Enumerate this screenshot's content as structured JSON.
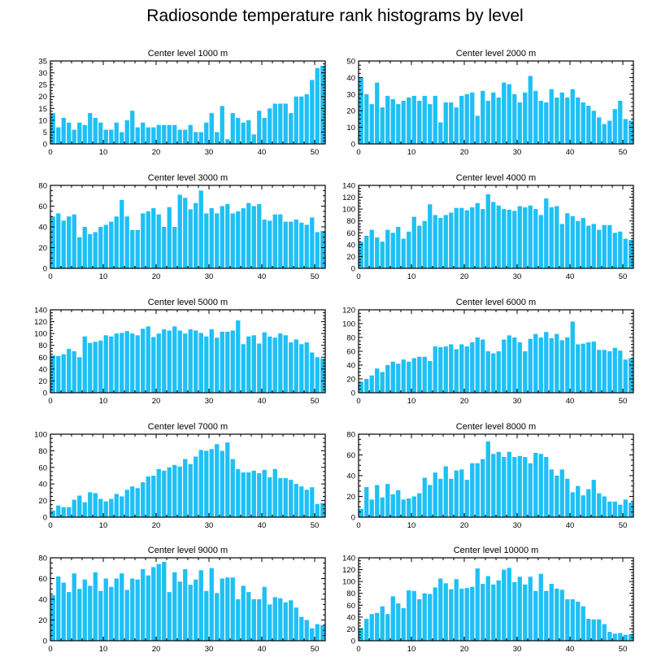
{
  "title": "Radiosonde temperature rank histograms by level",
  "colors": {
    "bar": "#1ec0f5",
    "axis": "#000000",
    "background": "#ffffff"
  },
  "chart_data": [
    {
      "type": "bar",
      "title": "Center level 1000 m",
      "xlim": [
        0,
        52
      ],
      "xticks": [
        0,
        10,
        20,
        30,
        40,
        50
      ],
      "ylim": [
        0,
        35
      ],
      "yticks": [
        0,
        5,
        10,
        15,
        20,
        25,
        30,
        35
      ],
      "values": [
        13,
        7,
        11,
        9,
        6,
        9,
        8,
        13,
        11,
        9,
        6,
        6,
        9,
        5,
        10,
        14,
        7,
        9,
        7,
        7,
        8,
        8,
        8,
        8,
        6,
        6,
        8,
        5,
        5,
        9,
        13,
        5,
        16,
        2,
        13,
        11,
        9,
        10,
        4,
        14,
        11,
        15,
        17,
        17,
        17,
        13,
        20,
        20,
        21,
        27,
        32,
        33
      ]
    },
    {
      "type": "bar",
      "title": "Center level 2000 m",
      "xlim": [
        0,
        52
      ],
      "xticks": [
        0,
        10,
        20,
        30,
        40,
        50
      ],
      "ylim": [
        0,
        50
      ],
      "yticks": [
        0,
        10,
        20,
        30,
        40,
        50
      ],
      "values": [
        40,
        30,
        24,
        37,
        22,
        29,
        27,
        24,
        26,
        28,
        29,
        26,
        29,
        24,
        29,
        13,
        25,
        25,
        22,
        29,
        30,
        31,
        17,
        32,
        26,
        31,
        28,
        37,
        36,
        30,
        25,
        31,
        41,
        32,
        26,
        25,
        33,
        28,
        31,
        28,
        33,
        28,
        25,
        23,
        20,
        16,
        12,
        14,
        21,
        26,
        15,
        14
      ]
    },
    {
      "type": "bar",
      "title": "Center level 3000 m",
      "xlim": [
        0,
        52
      ],
      "xticks": [
        0,
        10,
        20,
        30,
        40,
        50
      ],
      "ylim": [
        0,
        80
      ],
      "yticks": [
        0,
        20,
        40,
        60,
        80
      ],
      "values": [
        50,
        53,
        46,
        50,
        52,
        30,
        40,
        33,
        35,
        40,
        42,
        45,
        50,
        66,
        50,
        37,
        37,
        53,
        55,
        58,
        52,
        40,
        59,
        40,
        71,
        68,
        57,
        63,
        75,
        53,
        58,
        53,
        60,
        62,
        53,
        55,
        58,
        63,
        60,
        62,
        47,
        46,
        52,
        52,
        45,
        45,
        47,
        44,
        42,
        49,
        35,
        36
      ]
    },
    {
      "type": "bar",
      "title": "Center level 4000 m",
      "xlim": [
        0,
        52
      ],
      "xticks": [
        0,
        10,
        20,
        30,
        40,
        50
      ],
      "ylim": [
        0,
        140
      ],
      "yticks": [
        0,
        20,
        40,
        60,
        80,
        100,
        120,
        140
      ],
      "values": [
        45,
        55,
        65,
        52,
        45,
        65,
        60,
        70,
        50,
        62,
        87,
        72,
        80,
        108,
        90,
        85,
        90,
        94,
        102,
        102,
        98,
        103,
        110,
        100,
        125,
        112,
        106,
        100,
        99,
        97,
        105,
        103,
        106,
        100,
        90,
        118,
        103,
        105,
        75,
        93,
        88,
        80,
        85,
        72,
        75,
        65,
        73,
        73,
        60,
        62,
        50,
        48
      ]
    },
    {
      "type": "bar",
      "title": "Center level 5000 m",
      "xlim": [
        0,
        52
      ],
      "xticks": [
        0,
        10,
        20,
        30,
        40,
        50
      ],
      "ylim": [
        0,
        140
      ],
      "yticks": [
        0,
        20,
        40,
        60,
        80,
        100,
        120,
        140
      ],
      "values": [
        63,
        62,
        65,
        74,
        70,
        60,
        95,
        84,
        86,
        88,
        97,
        95,
        100,
        101,
        104,
        100,
        97,
        108,
        112,
        94,
        100,
        107,
        105,
        112,
        105,
        100,
        107,
        105,
        101,
        95,
        107,
        93,
        103,
        103,
        105,
        122,
        82,
        95,
        97,
        83,
        102,
        95,
        93,
        100,
        97,
        85,
        90,
        82,
        85,
        68,
        60,
        58
      ]
    },
    {
      "type": "bar",
      "title": "Center level 6000 m",
      "xlim": [
        0,
        52
      ],
      "xticks": [
        0,
        10,
        20,
        30,
        40,
        50
      ],
      "ylim": [
        0,
        120
      ],
      "yticks": [
        0,
        20,
        40,
        60,
        80,
        100,
        120
      ],
      "values": [
        16,
        20,
        25,
        35,
        30,
        40,
        45,
        42,
        48,
        45,
        50,
        52,
        52,
        46,
        67,
        66,
        67,
        70,
        63,
        70,
        67,
        73,
        80,
        77,
        60,
        57,
        60,
        77,
        83,
        80,
        73,
        60,
        78,
        85,
        80,
        88,
        79,
        85,
        76,
        80,
        103,
        70,
        71,
        73,
        74,
        62,
        62,
        60,
        65,
        61,
        48,
        50
      ]
    },
    {
      "type": "bar",
      "title": "Center level 7000 m",
      "xlim": [
        0,
        52
      ],
      "xticks": [
        0,
        10,
        20,
        30,
        40,
        50
      ],
      "ylim": [
        0,
        100
      ],
      "yticks": [
        0,
        20,
        40,
        60,
        80,
        100
      ],
      "values": [
        8,
        14,
        12,
        12,
        21,
        26,
        18,
        30,
        29,
        22,
        19,
        22,
        28,
        25,
        33,
        37,
        35,
        42,
        49,
        50,
        58,
        56,
        60,
        63,
        61,
        70,
        64,
        73,
        81,
        80,
        82,
        88,
        80,
        90,
        70,
        58,
        54,
        54,
        56,
        53,
        57,
        48,
        58,
        47,
        47,
        45,
        40,
        37,
        33,
        36,
        16,
        17
      ]
    },
    {
      "type": "bar",
      "title": "Center level 8000 m",
      "xlim": [
        0,
        52
      ],
      "xticks": [
        0,
        10,
        20,
        30,
        40,
        50
      ],
      "ylim": [
        0,
        80
      ],
      "yticks": [
        0,
        20,
        40,
        60,
        80
      ],
      "values": [
        8,
        29,
        17,
        31,
        19,
        32,
        22,
        26,
        17,
        18,
        20,
        23,
        38,
        31,
        43,
        37,
        49,
        37,
        45,
        46,
        36,
        52,
        52,
        56,
        73,
        61,
        63,
        58,
        63,
        58,
        59,
        58,
        52,
        62,
        61,
        58,
        46,
        40,
        46,
        37,
        24,
        30,
        21,
        27,
        36,
        23,
        20,
        15,
        15,
        12,
        17,
        14
      ]
    },
    {
      "type": "bar",
      "title": "Center level 9000 m",
      "xlim": [
        0,
        52
      ],
      "xticks": [
        0,
        10,
        20,
        30,
        40,
        50
      ],
      "ylim": [
        0,
        80
      ],
      "yticks": [
        0,
        20,
        40,
        60,
        80
      ],
      "values": [
        44,
        62,
        56,
        47,
        65,
        50,
        59,
        53,
        66,
        48,
        60,
        52,
        60,
        65,
        49,
        60,
        59,
        69,
        63,
        71,
        74,
        76,
        47,
        66,
        57,
        69,
        54,
        59,
        68,
        48,
        70,
        46,
        60,
        61,
        61,
        40,
        53,
        47,
        40,
        40,
        52,
        35,
        42,
        41,
        37,
        39,
        32,
        23,
        20,
        12,
        16,
        15
      ]
    },
    {
      "type": "bar",
      "title": "Center level 10000 m",
      "xlim": [
        0,
        52
      ],
      "xticks": [
        0,
        10,
        20,
        30,
        40,
        50
      ],
      "ylim": [
        0,
        140
      ],
      "yticks": [
        0,
        20,
        40,
        60,
        80,
        100,
        120,
        140
      ],
      "values": [
        20,
        37,
        45,
        47,
        58,
        45,
        75,
        63,
        55,
        85,
        84,
        70,
        80,
        79,
        90,
        105,
        97,
        87,
        104,
        88,
        89,
        91,
        122,
        96,
        109,
        95,
        102,
        120,
        123,
        99,
        108,
        95,
        108,
        84,
        113,
        84,
        96,
        88,
        86,
        70,
        70,
        66,
        58,
        37,
        36,
        36,
        28,
        15,
        12,
        13,
        10,
        11
      ]
    }
  ]
}
